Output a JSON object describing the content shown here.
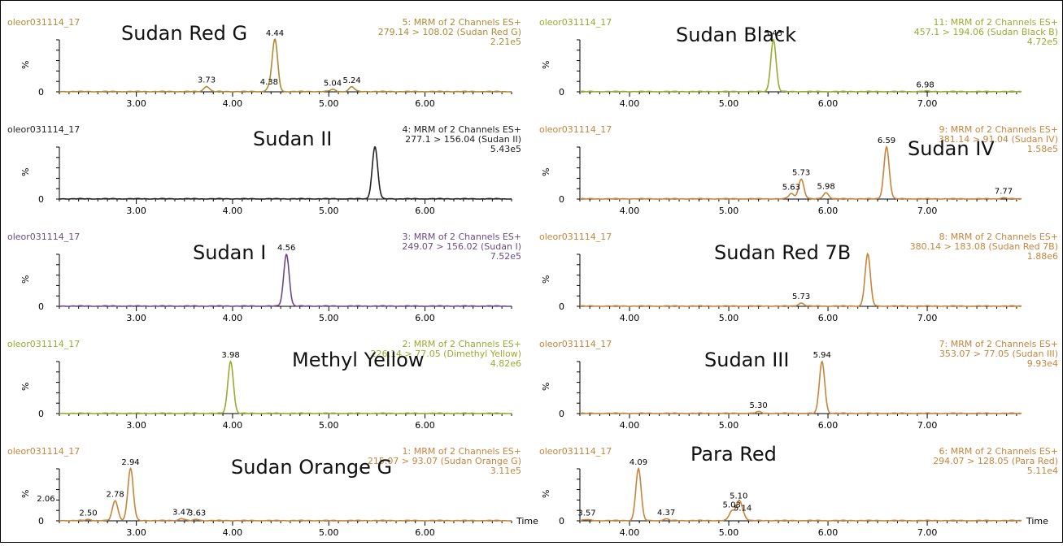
{
  "x_axis_label": "Time",
  "chart_data": [
    {
      "type": "line",
      "sample": "oleor031114_17",
      "header": [
        "5: MRM of 2 Channels ES+",
        "279.14 > 108.02 (Sudan Red G)",
        "2.21e5"
      ],
      "annotation": "Sudan Red G",
      "color": "#b08a33",
      "ylabel": "%",
      "xlim": [
        2.2,
        6.9
      ],
      "xticks": [
        "3.00",
        "4.00",
        "5.00",
        "6.00"
      ],
      "series": [
        {
          "peaks": [
            {
              "x": 3.73,
              "h": 0.1,
              "label": "3.73"
            },
            {
              "x": 4.38,
              "h": 0.06,
              "label": "4.38"
            },
            {
              "x": 4.44,
              "h": 1.0,
              "label": "4.44"
            },
            {
              "x": 5.04,
              "h": 0.04,
              "label": "5.04"
            },
            {
              "x": 5.24,
              "h": 0.09,
              "label": "5.24"
            }
          ]
        }
      ]
    },
    {
      "type": "line",
      "sample": "oleor031114_17",
      "header": [
        "11: MRM of 2 Channels ES+",
        "457.1 > 194.06 (Sudan Black B)",
        "4.72e5"
      ],
      "annotation": "Sudan Black",
      "color": "#9aab2e",
      "ylabel": "%",
      "xlim": [
        3.5,
        7.95
      ],
      "xticks": [
        "4.00",
        "5.00",
        "6.00",
        "7.00"
      ],
      "series": [
        {
          "peaks": [
            {
              "x": 5.45,
              "h": 1.0,
              "label": "5.45"
            },
            {
              "x": 6.98,
              "h": 0.01,
              "label": "6.98"
            }
          ]
        }
      ]
    },
    {
      "type": "line",
      "sample": "oleor031114_17",
      "header": [
        "4: MRM of 2 Channels ES+",
        "277.1 > 156.04 (Sudan II)",
        "5.43e5"
      ],
      "annotation": "Sudan II",
      "color": "#222222",
      "ylabel": "%",
      "xlim": [
        2.2,
        6.9
      ],
      "xticks": [
        "3.00",
        "4.00",
        "5.00",
        "6.00"
      ],
      "series": [
        {
          "peaks": [
            {
              "x": 5.48,
              "h": 1.0,
              "label": ""
            }
          ]
        }
      ]
    },
    {
      "type": "line",
      "sample": "oleor031114_17",
      "header": [
        "9: MRM of 2 Channels ES+",
        "381.14 > 91.04 (Sudan IV)",
        "1.58e5"
      ],
      "annotation": "Sudan IV",
      "color": "#c8843b",
      "ylabel": "%",
      "xlim": [
        3.5,
        7.95
      ],
      "xticks": [
        "4.00",
        "5.00",
        "6.00",
        "7.00"
      ],
      "series": [
        {
          "peaks": [
            {
              "x": 5.63,
              "h": 0.1,
              "label": "5.63"
            },
            {
              "x": 5.73,
              "h": 0.38,
              "label": "5.73"
            },
            {
              "x": 5.98,
              "h": 0.12,
              "label": "5.98"
            },
            {
              "x": 6.59,
              "h": 1.0,
              "label": "6.59"
            },
            {
              "x": 7.77,
              "h": 0.02,
              "label": "7.77"
            }
          ]
        }
      ]
    },
    {
      "type": "line",
      "sample": "oleor031114_17",
      "header": [
        "3: MRM of 2 Channels ES+",
        "249.07 > 156.02 (Sudan I)",
        "7.52e5"
      ],
      "annotation": "Sudan I",
      "color": "#6b4a8a",
      "ylabel": "%",
      "xlim": [
        2.2,
        6.9
      ],
      "xticks": [
        "3.00",
        "4.00",
        "5.00",
        "6.00"
      ],
      "series": [
        {
          "peaks": [
            {
              "x": 4.56,
              "h": 1.0,
              "label": "4.56"
            }
          ]
        }
      ]
    },
    {
      "type": "line",
      "sample": "oleor031114_17",
      "header": [
        "8: MRM of 2 Channels ES+",
        "380.14 > 183.08 (Sudan Red 7B)",
        "1.88e6"
      ],
      "annotation": "Sudan Red 7B",
      "color": "#c8843b",
      "ylabel": "%",
      "xlim": [
        3.5,
        7.95
      ],
      "xticks": [
        "4.00",
        "5.00",
        "6.00",
        "7.00"
      ],
      "series": [
        {
          "peaks": [
            {
              "x": 5.73,
              "h": 0.06,
              "label": "5.73"
            },
            {
              "x": 6.4,
              "h": 1.0,
              "label": ""
            }
          ]
        }
      ]
    },
    {
      "type": "line",
      "sample": "oleor031114_17",
      "header": [
        "2: MRM of 2 Channels ES+",
        "226.14 > 77.05 (Dimethyl Yellow)",
        "4.82e6"
      ],
      "annotation": "Methyl Yellow",
      "color": "#9aab2e",
      "ylabel": "%",
      "xlim": [
        2.2,
        6.9
      ],
      "xticks": [
        "3.00",
        "4.00",
        "5.00",
        "6.00"
      ],
      "series": [
        {
          "peaks": [
            {
              "x": 3.98,
              "h": 1.0,
              "label": "3.98"
            }
          ]
        }
      ]
    },
    {
      "type": "line",
      "sample": "oleor031114_17",
      "header": [
        "7: MRM of 2 Channels ES+",
        "353.07 > 77.05 (Sudan III)",
        "9.93e4"
      ],
      "annotation": "Sudan III",
      "color": "#c8843b",
      "ylabel": "%",
      "xlim": [
        3.5,
        7.95
      ],
      "xticks": [
        "4.00",
        "5.00",
        "6.00",
        "7.00"
      ],
      "series": [
        {
          "peaks": [
            {
              "x": 5.3,
              "h": 0.03,
              "label": "5.30"
            },
            {
              "x": 5.94,
              "h": 1.0,
              "label": "5.94"
            }
          ]
        }
      ]
    },
    {
      "type": "line",
      "sample": "oleor031114_17",
      "header": [
        "1: MRM of 2 Channels ES+",
        "215.07 > 93.07 (Sudan Orange G)",
        "3.11e5"
      ],
      "annotation": "Sudan Orange G",
      "color": "#c8843b",
      "ylabel": "%",
      "xlim": [
        2.2,
        6.9
      ],
      "xticks": [
        "3.00",
        "4.00",
        "5.00",
        "6.00"
      ],
      "show_time_label": true,
      "series": [
        {
          "peaks": [
            {
              "x": 2.06,
              "h": 0.3,
              "label": "2.06"
            },
            {
              "x": 2.5,
              "h": 0.02,
              "label": "2.50"
            },
            {
              "x": 2.78,
              "h": 0.38,
              "label": "2.78"
            },
            {
              "x": 2.94,
              "h": 1.0,
              "label": "2.94"
            },
            {
              "x": 3.47,
              "h": 0.04,
              "label": "3.47"
            },
            {
              "x": 3.63,
              "h": 0.02,
              "label": "3.63"
            }
          ]
        }
      ]
    },
    {
      "type": "line",
      "sample": "oleor031114_17",
      "header": [
        "6: MRM of 2 Channels ES+",
        "294.07 > 128.05 (Para Red)",
        "5.11e4"
      ],
      "annotation": "Para Red",
      "color": "#c8843b",
      "ylabel": "%",
      "xlim": [
        3.5,
        7.95
      ],
      "xticks": [
        "4.00",
        "5.00",
        "6.00",
        "7.00"
      ],
      "show_time_label": true,
      "series": [
        {
          "peaks": [
            {
              "x": 3.57,
              "h": 0.02,
              "label": "3.57"
            },
            {
              "x": 4.09,
              "h": 1.0,
              "label": "4.09"
            },
            {
              "x": 4.37,
              "h": 0.03,
              "label": "4.37"
            },
            {
              "x": 5.03,
              "h": 0.18,
              "label": "5.03"
            },
            {
              "x": 5.1,
              "h": 0.35,
              "label": "5.10"
            },
            {
              "x": 5.14,
              "h": 0.12,
              "label": "5.14"
            }
          ]
        }
      ]
    }
  ]
}
